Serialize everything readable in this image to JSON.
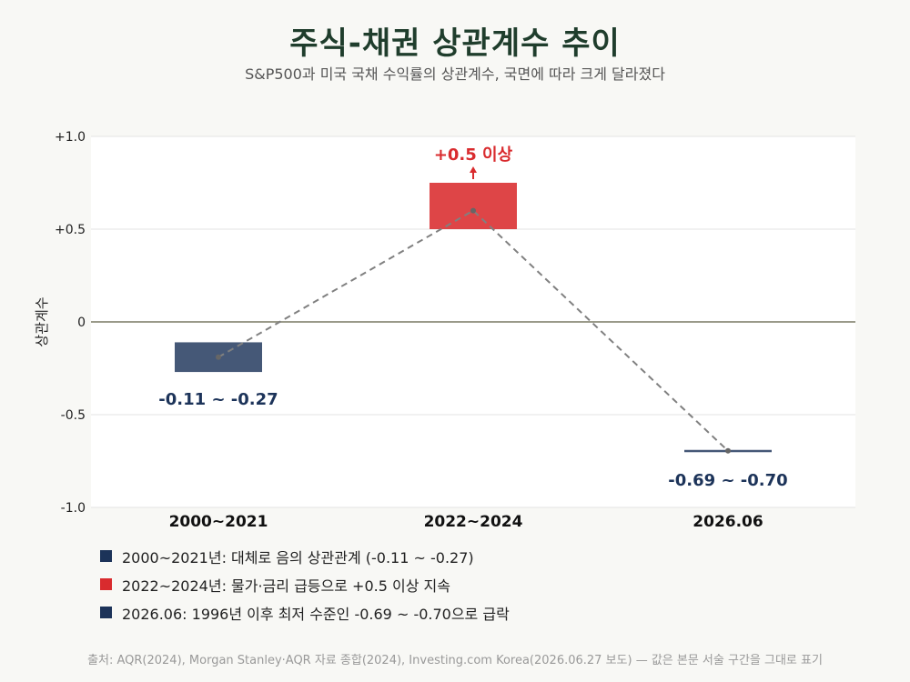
{
  "header": {
    "title": "주식-채권 상관계수 추이",
    "subtitle": "S&P500과 미국 국채 수익률의 상관계수, 국면에 따라 크게 달라졌다"
  },
  "chart_data": {
    "type": "bar",
    "title": "주식-채권 상관계수 추이",
    "ylabel": "상관계수",
    "ylim": [
      -1.0,
      1.0
    ],
    "yticks": [
      1.0,
      0.5,
      0,
      -0.5,
      -1.0
    ],
    "ytick_labels": [
      "+1.0",
      "+0.5",
      "0",
      "-0.5",
      "-1.0"
    ],
    "grid": true,
    "categories": [
      "2000~2021",
      "2022~2024",
      "2026.06"
    ],
    "ranges": [
      [
        -0.11,
        -0.27
      ],
      [
        0.5,
        0.75
      ],
      [
        -0.69,
        -0.7
      ]
    ],
    "points": [
      -0.19,
      0.6,
      -0.695
    ],
    "colors": [
      "#1c3359",
      "#d92b2e",
      "#1c3359"
    ],
    "value_labels": [
      "-0.11 ~ -0.27",
      "+0.5 이상",
      "-0.69 ~ -0.70"
    ],
    "connector": "dashed"
  },
  "legend": [
    {
      "label": "2000~2021년: 대체로 음의 상관관계 (-0.11 ~ -0.27)",
      "color": "#1c3359"
    },
    {
      "label": "2022~2024년: 물가·금리 급등으로 +0.5 이상 지속",
      "color": "#d92b2e"
    },
    {
      "label": "2026.06: 1996년 이후 최저 수준인 -0.69 ~ -0.70으로 급락",
      "color": "#1c3359"
    }
  ],
  "footer": "출처: AQR(2024), Morgan Stanley·AQR 자료 종합(2024), Investing.com Korea(2026.06.27 보도) — 값은 본문 서술 구간을 그대로 표기"
}
